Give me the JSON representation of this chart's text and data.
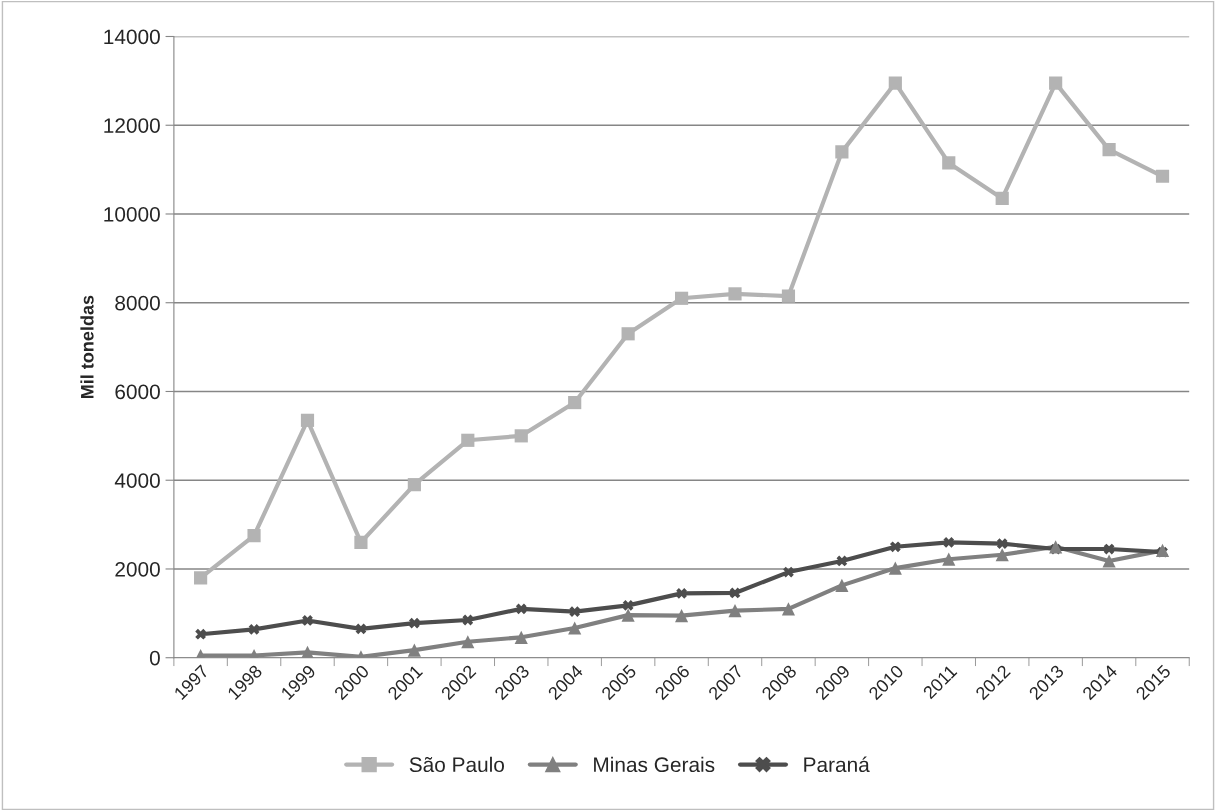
{
  "chart_data": {
    "type": "line",
    "ylabel": "Mil toneldas",
    "categories": [
      "1997",
      "1998",
      "1999",
      "2000",
      "2001",
      "2002",
      "2003",
      "2004",
      "2005",
      "2006",
      "2007",
      "2008",
      "2009",
      "2010",
      "2011",
      "2012",
      "2013",
      "2014",
      "2015"
    ],
    "series": [
      {
        "name": "São Paulo",
        "color": "#b3b3b3",
        "marker": "square",
        "values": [
          1800,
          2750,
          5350,
          2600,
          3900,
          4900,
          5000,
          5750,
          7300,
          8100,
          8200,
          8150,
          11400,
          12950,
          11150,
          10350,
          12950,
          11450,
          10850
        ]
      },
      {
        "name": "Minas Gerais",
        "color": "#808080",
        "marker": "triangle",
        "values": [
          50,
          50,
          120,
          20,
          170,
          360,
          460,
          670,
          960,
          950,
          1060,
          1100,
          1630,
          2020,
          2220,
          2320,
          2500,
          2180,
          2420
        ]
      },
      {
        "name": "Paraná",
        "color": "#4d4d4d",
        "marker": "cross",
        "values": [
          530,
          640,
          840,
          650,
          780,
          850,
          1100,
          1040,
          1180,
          1450,
          1460,
          1930,
          2180,
          2500,
          2600,
          2570,
          2450,
          2450,
          2380
        ]
      }
    ],
    "ylim": [
      0,
      14000
    ],
    "yticks": [
      0,
      2000,
      4000,
      6000,
      8000,
      10000,
      12000,
      14000
    ],
    "grid": "y",
    "legend": "bottom",
    "line_style": "solid"
  }
}
